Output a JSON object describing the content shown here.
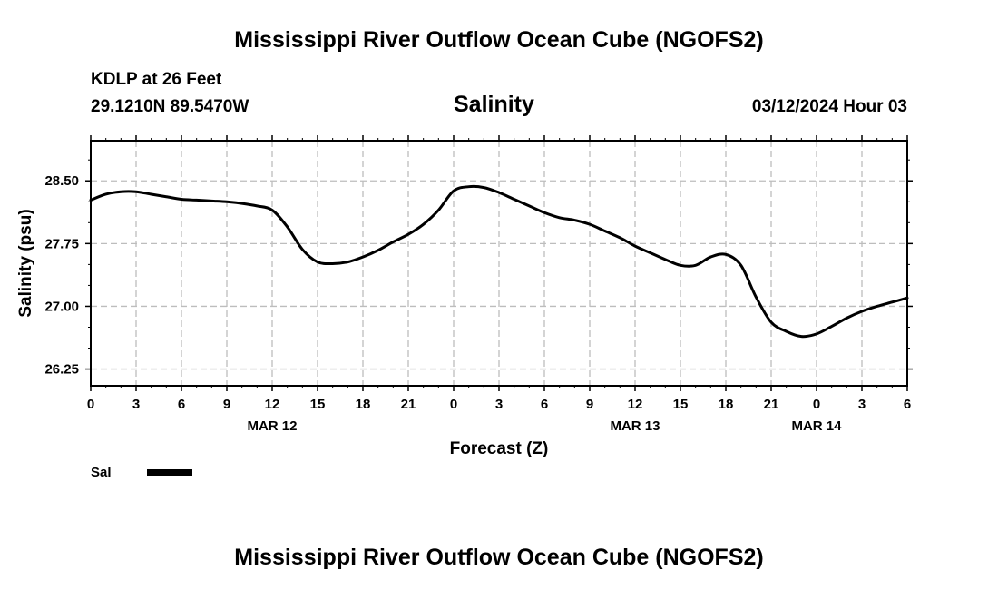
{
  "header": {
    "title": "Mississippi River Outflow Ocean Cube (NGOFS2)",
    "station": "KDLP at 26 Feet",
    "coords": "29.1210N  89.5470W",
    "datetime": "03/12/2024 Hour 03"
  },
  "footer": {
    "title": "Mississippi River Outflow Ocean Cube (NGOFS2)"
  },
  "colors": {
    "line": "#000000",
    "grid": "#bdbdbd",
    "frame": "#000000"
  },
  "chart_data": {
    "type": "line",
    "title": "Salinity",
    "xlabel": "Forecast (Z)",
    "ylabel": "Salinity (psu)",
    "x_unit": "hours",
    "xlim": [
      0,
      54
    ],
    "ylim": [
      26.05,
      28.98
    ],
    "grid": true,
    "legend_position": "bottom-left",
    "x_ticks": [
      {
        "x": 0,
        "label": "0"
      },
      {
        "x": 3,
        "label": "3"
      },
      {
        "x": 6,
        "label": "6"
      },
      {
        "x": 9,
        "label": "9"
      },
      {
        "x": 12,
        "label": "12"
      },
      {
        "x": 15,
        "label": "15"
      },
      {
        "x": 18,
        "label": "18"
      },
      {
        "x": 21,
        "label": "21"
      },
      {
        "x": 24,
        "label": "0"
      },
      {
        "x": 27,
        "label": "3"
      },
      {
        "x": 30,
        "label": "6"
      },
      {
        "x": 33,
        "label": "9"
      },
      {
        "x": 36,
        "label": "12"
      },
      {
        "x": 39,
        "label": "15"
      },
      {
        "x": 42,
        "label": "18"
      },
      {
        "x": 45,
        "label": "21"
      },
      {
        "x": 48,
        "label": "0"
      },
      {
        "x": 51,
        "label": "3"
      },
      {
        "x": 54,
        "label": "6"
      }
    ],
    "date_labels": [
      {
        "x": 12,
        "label": "MAR 12"
      },
      {
        "x": 36,
        "label": "MAR 13"
      },
      {
        "x": 48,
        "label": "MAR 14"
      }
    ],
    "y_ticks": [
      {
        "y": 26.25,
        "label": "26.25"
      },
      {
        "y": 27.0,
        "label": "27.00"
      },
      {
        "y": 27.75,
        "label": "27.75"
      },
      {
        "y": 28.5,
        "label": "28.50"
      }
    ],
    "series": [
      {
        "name": "Sal",
        "x": [
          0,
          1,
          2,
          3,
          4,
          5,
          6,
          7,
          8,
          9,
          10,
          11,
          12,
          13,
          14,
          15,
          16,
          17,
          18,
          19,
          20,
          21,
          22,
          23,
          24,
          25,
          26,
          27,
          28,
          29,
          30,
          31,
          32,
          33,
          34,
          35,
          36,
          37,
          38,
          39,
          40,
          41,
          42,
          43,
          44,
          45,
          46,
          47,
          48,
          49,
          50,
          51,
          52,
          53,
          54
        ],
        "values": [
          28.27,
          28.34,
          28.37,
          28.37,
          28.34,
          28.31,
          28.28,
          28.27,
          28.26,
          28.25,
          28.23,
          28.2,
          28.15,
          27.95,
          27.68,
          27.53,
          27.51,
          27.53,
          27.59,
          27.67,
          27.77,
          27.86,
          27.98,
          28.15,
          28.38,
          28.43,
          28.42,
          28.36,
          28.28,
          28.2,
          28.12,
          28.06,
          28.03,
          27.98,
          27.9,
          27.82,
          27.72,
          27.64,
          27.56,
          27.49,
          27.49,
          27.59,
          27.62,
          27.49,
          27.11,
          26.81,
          26.7,
          26.64,
          26.67,
          26.76,
          26.86,
          26.94,
          27.0,
          27.05,
          27.1
        ]
      }
    ]
  }
}
